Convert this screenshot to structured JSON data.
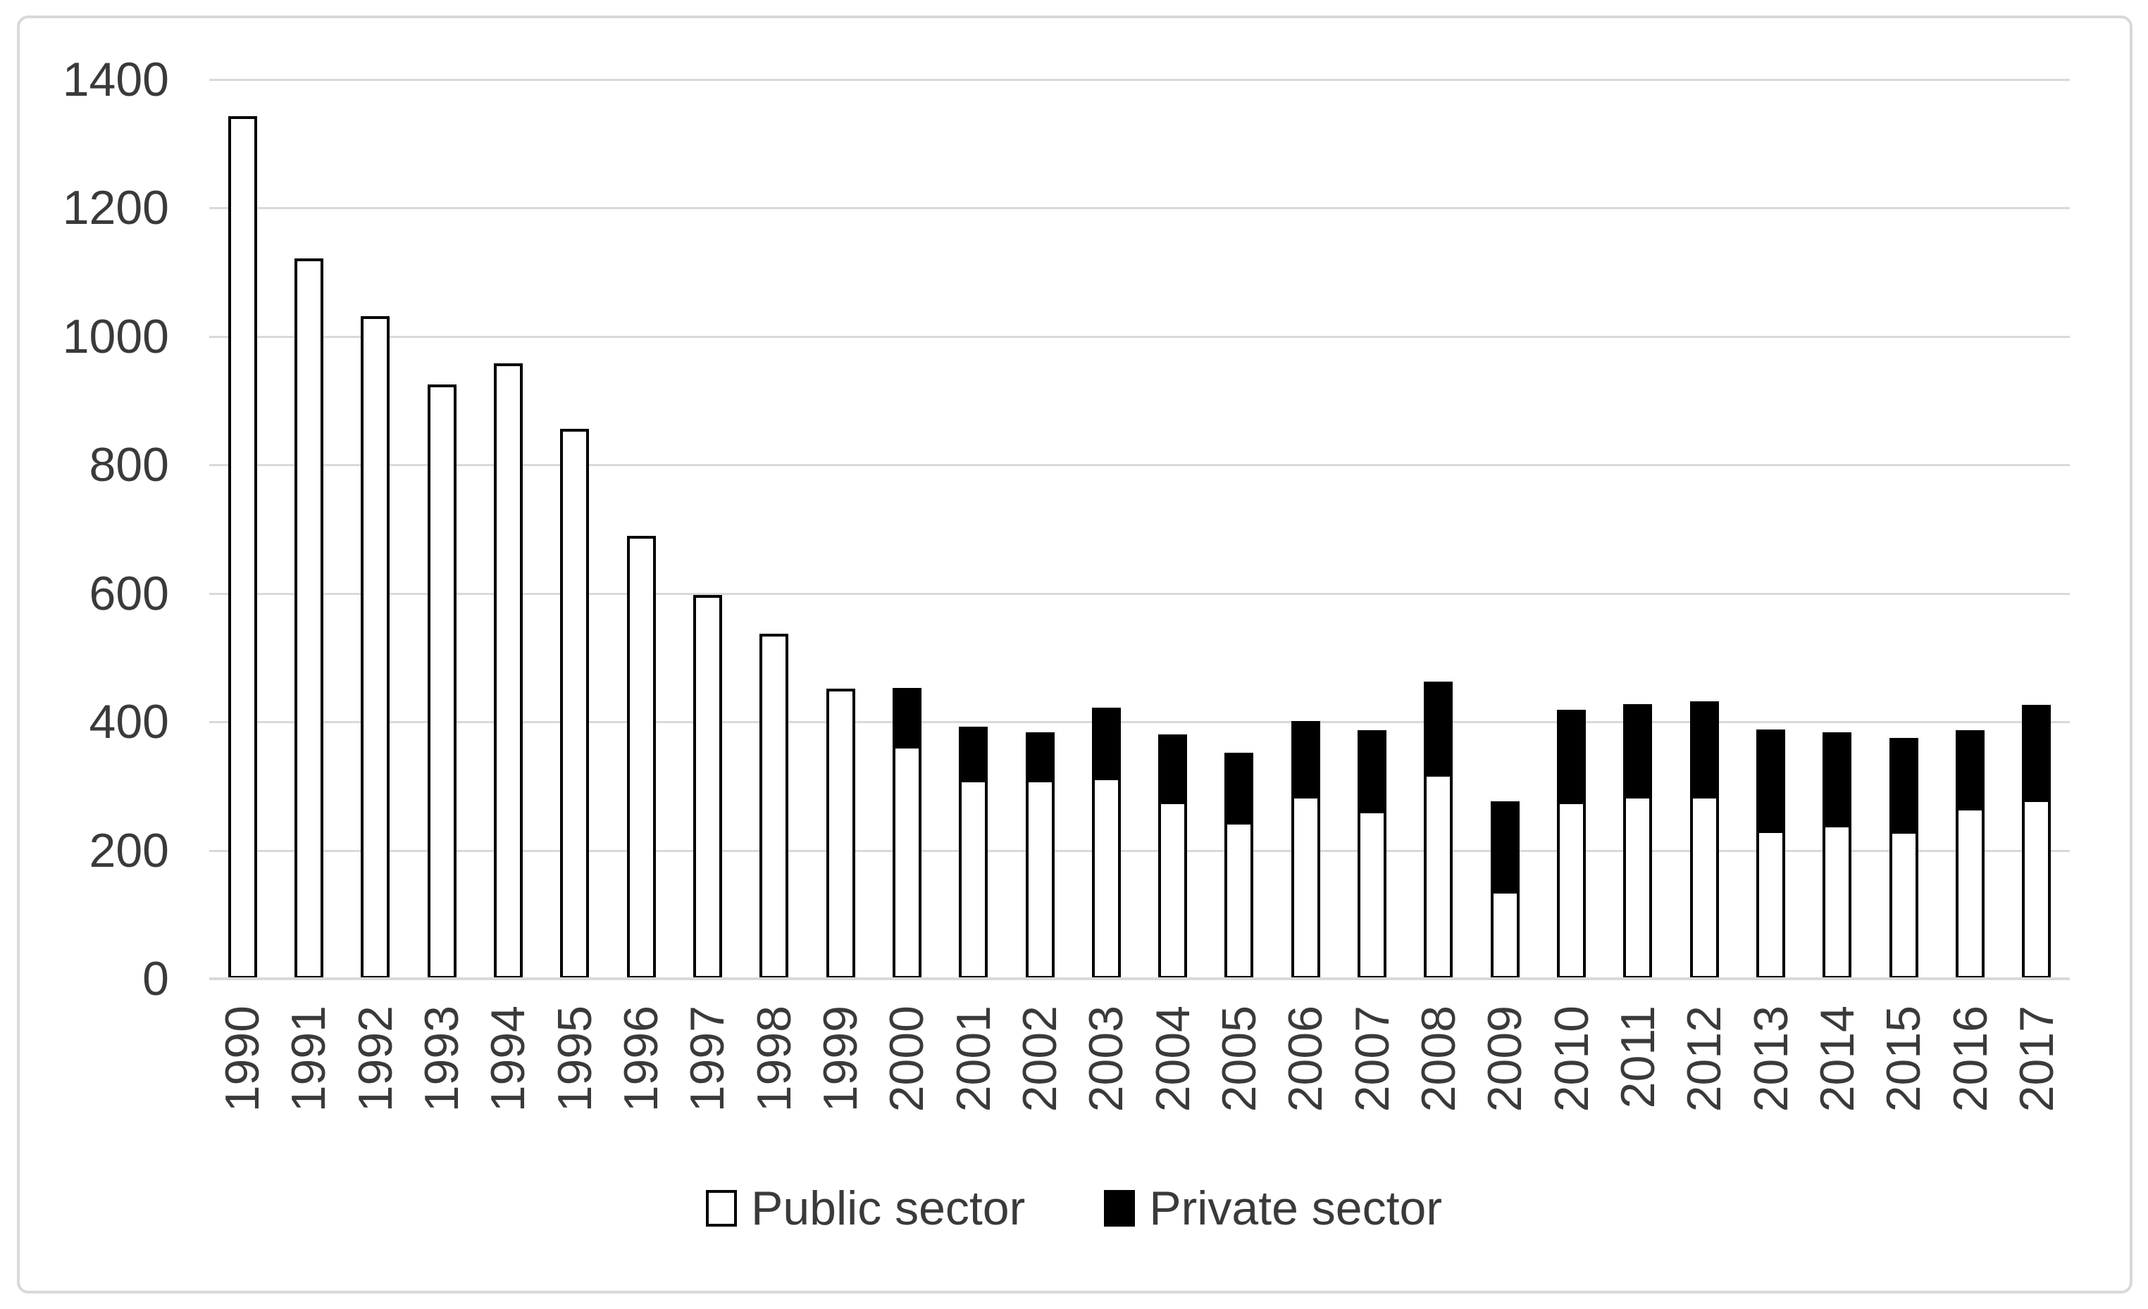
{
  "chart_data": {
    "type": "bar",
    "stacked": true,
    "title": "",
    "xlabel": "",
    "ylabel": "",
    "categories": [
      "1990",
      "1991",
      "1992",
      "1993",
      "1994",
      "1995",
      "1996",
      "1997",
      "1998",
      "1999",
      "2000",
      "2001",
      "2002",
      "2003",
      "2004",
      "2005",
      "2006",
      "2007",
      "2008",
      "2009",
      "2010",
      "2011",
      "2012",
      "2013",
      "2014",
      "2015",
      "2016",
      "2017"
    ],
    "series": [
      {
        "name": "Public sector",
        "fill": "#ffffff",
        "stroke": "#000000",
        "values": [
          1343,
          1122,
          1032,
          925,
          958,
          856,
          690,
          598,
          537,
          452,
          363,
          310,
          310,
          314,
          276,
          245,
          285,
          262,
          319,
          137,
          276,
          285,
          285,
          231,
          240,
          230,
          266,
          280
        ]
      },
      {
        "name": "Private sector",
        "fill": "#000000",
        "stroke": "#000000",
        "values": [
          0,
          0,
          0,
          0,
          0,
          0,
          0,
          0,
          0,
          0,
          90,
          82,
          73,
          108,
          104,
          107,
          116,
          125,
          144,
          139,
          143,
          142,
          147,
          157,
          144,
          145,
          121,
          147
        ]
      }
    ],
    "ylim": [
      0,
      1400
    ],
    "y_ticks": [
      0,
      200,
      400,
      600,
      800,
      1000,
      1200,
      1400
    ],
    "grid": true,
    "legend_position": "bottom-center",
    "colors": {
      "gridline": "#d9d9d9",
      "axis_line": "#d9d9d9",
      "frame_border": "#d9d9d9",
      "text": "#3a3a3a",
      "background": "#ffffff"
    }
  }
}
